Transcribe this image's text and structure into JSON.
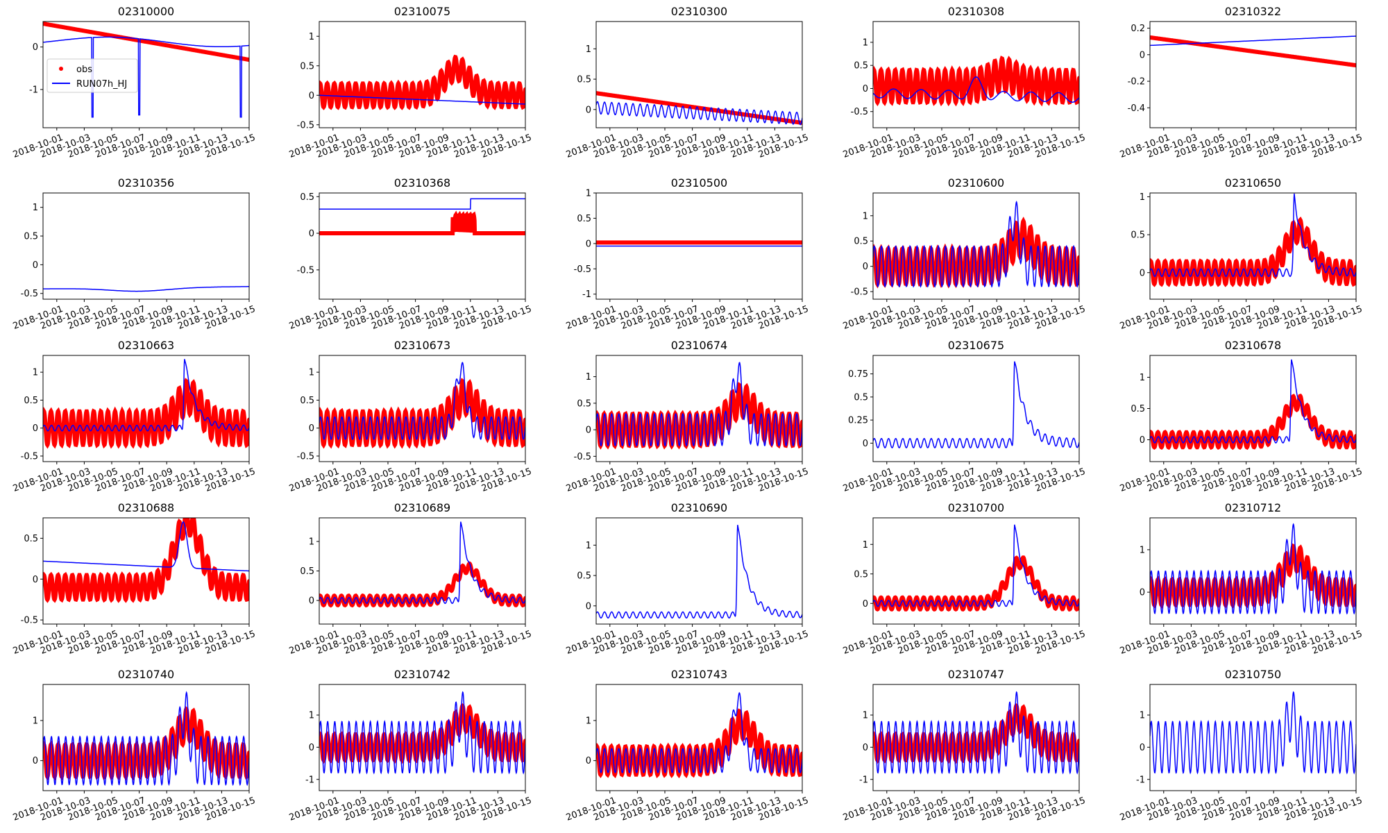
{
  "colors": {
    "obs": "#ff0000",
    "model": "#0000ff",
    "frame": "#000000",
    "background": "#ffffff"
  },
  "legend": {
    "placement": "upper-left of first subplot",
    "entries": [
      {
        "label": "obs",
        "style": "red-dot"
      },
      {
        "label": "RUN07h_HJ",
        "style": "blue-line"
      }
    ]
  },
  "chart_data": [
    {
      "title": "02310000",
      "type": "line",
      "ylim": [
        -1.9,
        0.6
      ],
      "yticks": [
        0,
        -1
      ],
      "obs": {
        "shape": "trend",
        "start": 0.55,
        "end": -0.3
      },
      "model": {
        "shape": "dips",
        "base_start": 0.15,
        "base_end": 0.1,
        "dips": [
          [
            2.6,
            -1.65
          ],
          [
            6.0,
            -1.6
          ],
          [
            13.4,
            -1.65
          ]
        ]
      }
    },
    {
      "title": "02310075",
      "type": "line",
      "ylim": [
        -0.55,
        1.25
      ],
      "yticks": [
        1.0,
        0.5,
        0.0,
        -0.5
      ],
      "obs": {
        "shape": "tidal",
        "mean": 0.0,
        "amp": 0.2,
        "peak": 0.45,
        "peak_day": 9.0
      },
      "model": {
        "shape": "smooth",
        "start": 0.0,
        "end": -0.15
      }
    },
    {
      "title": "02310300",
      "type": "line",
      "ylim": [
        -0.3,
        1.45
      ],
      "yticks": [
        1.0,
        0.5,
        0.0
      ],
      "obs": {
        "shape": "trend",
        "start": 0.27,
        "end": -0.22
      },
      "model": {
        "shape": "spiky",
        "start": 0.03,
        "end": -0.15,
        "amp": 0.1
      }
    },
    {
      "title": "02310308",
      "type": "line",
      "ylim": [
        -0.85,
        1.45
      ],
      "yticks": [
        1.0,
        0.5,
        0.0,
        -0.5
      ],
      "obs": {
        "shape": "tidal",
        "mean": 0.05,
        "amp": 0.35,
        "peak": 0.3,
        "peak_day": 8.5
      },
      "model": {
        "shape": "smooth-wave",
        "start": -0.1,
        "end": -0.2,
        "amp": 0.1
      }
    },
    {
      "title": "02310322",
      "type": "line",
      "ylim": [
        -0.55,
        0.25
      ],
      "yticks": [
        0.2,
        0.0,
        -0.2,
        -0.4
      ],
      "obs": {
        "shape": "trend",
        "start": 0.13,
        "end": -0.08
      },
      "model": {
        "shape": "smooth",
        "start": 0.07,
        "end": 0.14
      }
    },
    {
      "title": "02310356",
      "type": "line",
      "ylim": [
        -0.6,
        1.25
      ],
      "yticks": [
        1.0,
        0.5,
        0.0,
        -0.5
      ],
      "obs": null,
      "model": {
        "shape": "smooth",
        "start": -0.42,
        "end": -0.38,
        "dip": -0.48
      }
    },
    {
      "title": "02310368",
      "type": "line",
      "ylim": [
        -0.9,
        0.55
      ],
      "yticks": [
        0.5,
        0.0,
        -0.5
      ],
      "obs": {
        "shape": "flat",
        "mean": 0.0,
        "bump": 0.25,
        "bump_day": 9.5
      },
      "model": {
        "shape": "step",
        "start": 0.33,
        "end": 0.47,
        "step_day": 10.0
      }
    },
    {
      "title": "02310500",
      "type": "line",
      "ylim": [
        -1.1,
        1.0
      ],
      "yticks": [
        1.0,
        0.5,
        0.0,
        -0.5,
        -1.0
      ],
      "obs": {
        "shape": "flat",
        "mean": 0.02
      },
      "model": {
        "shape": "smooth",
        "start": -0.05,
        "end": -0.05
      }
    },
    {
      "title": "02310600",
      "type": "line",
      "ylim": [
        -0.65,
        1.45
      ],
      "yticks": [
        1.0,
        0.5,
        0.0,
        -0.5
      ],
      "obs": {
        "shape": "tidal",
        "mean": 0.0,
        "amp": 0.35,
        "peak": 0.55,
        "peak_day": 9.8
      },
      "model": {
        "shape": "tidal-peak",
        "mean": 0.0,
        "amp": 0.4,
        "peak": 1.35,
        "peak_day": 9.3
      }
    },
    {
      "title": "02310650",
      "type": "line",
      "ylim": [
        -0.35,
        1.05
      ],
      "yticks": [
        1.0,
        0.5,
        0.0
      ],
      "obs": {
        "shape": "tidal",
        "mean": 0.0,
        "amp": 0.15,
        "peak": 0.55,
        "peak_day": 9.8
      },
      "model": {
        "shape": "peak",
        "base": 0.0,
        "peak": 1.0,
        "peak_day": 9.5
      }
    },
    {
      "title": "02310663",
      "type": "line",
      "ylim": [
        -0.6,
        1.3
      ],
      "yticks": [
        1.0,
        0.5,
        0.0,
        -0.5
      ],
      "obs": {
        "shape": "tidal",
        "mean": 0.0,
        "amp": 0.3,
        "peak": 0.55,
        "peak_day": 9.6
      },
      "model": {
        "shape": "peak",
        "base": 0.0,
        "peak": 1.25,
        "peak_day": 9.3
      }
    },
    {
      "title": "02310673",
      "type": "line",
      "ylim": [
        -0.6,
        1.3
      ],
      "yticks": [
        1.0,
        0.5,
        0.0,
        -0.5
      ],
      "obs": {
        "shape": "tidal",
        "mean": 0.0,
        "amp": 0.3,
        "peak": 0.55,
        "peak_day": 9.6
      },
      "model": {
        "shape": "tidal-peak",
        "mean": 0.0,
        "amp": 0.2,
        "peak": 1.25,
        "peak_day": 9.3
      }
    },
    {
      "title": "02310674",
      "type": "line",
      "ylim": [
        -0.6,
        1.4
      ],
      "yticks": [
        1.0,
        0.5,
        0.0,
        -0.5
      ],
      "obs": {
        "shape": "tidal",
        "mean": 0.0,
        "amp": 0.3,
        "peak": 0.55,
        "peak_day": 9.6
      },
      "model": {
        "shape": "tidal-peak",
        "mean": 0.0,
        "amp": 0.3,
        "peak": 1.35,
        "peak_day": 9.3
      }
    },
    {
      "title": "02310675",
      "type": "line",
      "ylim": [
        -0.2,
        0.95
      ],
      "yticks": [
        0.75,
        0.5,
        0.25,
        0.0
      ],
      "obs": null,
      "model": {
        "shape": "peak",
        "base": 0.0,
        "peak": 0.9,
        "peak_day": 9.3
      }
    },
    {
      "title": "02310678",
      "type": "line",
      "ylim": [
        -0.35,
        1.35
      ],
      "yticks": [
        1.0,
        0.5,
        0.0
      ],
      "obs": {
        "shape": "tidal",
        "mean": 0.0,
        "amp": 0.12,
        "peak": 0.6,
        "peak_day": 9.7
      },
      "model": {
        "shape": "peak",
        "base": 0.0,
        "peak": 1.3,
        "peak_day": 9.3
      }
    },
    {
      "title": "02310688",
      "type": "line",
      "ylim": [
        -0.55,
        0.75
      ],
      "yticks": [
        0.5,
        0.0,
        -0.5
      ],
      "obs": {
        "shape": "tidal",
        "mean": -0.1,
        "amp": 0.15,
        "peak": 0.7,
        "peak_day": 9.5
      },
      "model": {
        "shape": "smooth",
        "start": 0.22,
        "end": 0.1,
        "peak": 0.7,
        "peak_day": 9.2
      }
    },
    {
      "title": "02310689",
      "type": "line",
      "ylim": [
        -0.4,
        1.4
      ],
      "yticks": [
        1.0,
        0.5,
        0.0
      ],
      "obs": {
        "shape": "tidal",
        "mean": 0.0,
        "amp": 0.08,
        "peak": 0.55,
        "peak_day": 9.8
      },
      "model": {
        "shape": "peak",
        "base": 0.0,
        "peak": 1.35,
        "peak_day": 9.3
      }
    },
    {
      "title": "02310690",
      "type": "line",
      "ylim": [
        -0.3,
        1.45
      ],
      "yticks": [
        1.0,
        0.5,
        0.0
      ],
      "obs": null,
      "model": {
        "shape": "peak",
        "base": -0.15,
        "peak": 1.35,
        "peak_day": 9.3
      }
    },
    {
      "title": "02310700",
      "type": "line",
      "ylim": [
        -0.35,
        1.45
      ],
      "yticks": [
        1.0,
        0.5,
        0.0
      ],
      "obs": {
        "shape": "tidal",
        "mean": 0.0,
        "amp": 0.1,
        "peak": 0.7,
        "peak_day": 9.7
      },
      "model": {
        "shape": "peak",
        "base": 0.0,
        "peak": 1.35,
        "peak_day": 9.3
      }
    },
    {
      "title": "02310712",
      "type": "line",
      "ylim": [
        -0.75,
        1.75
      ],
      "yticks": [
        1,
        0
      ],
      "obs": {
        "shape": "tidal",
        "mean": 0.0,
        "amp": 0.3,
        "peak": 0.8,
        "peak_day": 9.6
      },
      "model": {
        "shape": "tidal-peak",
        "mean": 0.0,
        "amp": 0.5,
        "peak": 1.7,
        "peak_day": 9.3
      }
    },
    {
      "title": "02310740",
      "type": "line",
      "ylim": [
        -0.75,
        1.9
      ],
      "yticks": [
        1,
        0
      ],
      "obs": {
        "shape": "tidal",
        "mean": 0.0,
        "amp": 0.4,
        "peak": 0.9,
        "peak_day": 9.6
      },
      "model": {
        "shape": "tidal-peak",
        "mean": 0.0,
        "amp": 0.6,
        "peak": 1.8,
        "peak_day": 9.3
      }
    },
    {
      "title": "02310742",
      "type": "line",
      "ylim": [
        -1.35,
        1.95
      ],
      "yticks": [
        1,
        0,
        -1
      ],
      "obs": {
        "shape": "tidal",
        "mean": 0.0,
        "amp": 0.4,
        "peak": 0.9,
        "peak_day": 9.6
      },
      "model": {
        "shape": "tidal-peak",
        "mean": 0.0,
        "amp": 0.8,
        "peak": 1.8,
        "peak_day": 9.3
      }
    },
    {
      "title": "02310743",
      "type": "line",
      "ylim": [
        -0.75,
        1.9
      ],
      "yticks": [
        1,
        0
      ],
      "obs": {
        "shape": "tidal",
        "mean": 0.0,
        "amp": 0.35,
        "peak": 0.9,
        "peak_day": 9.6
      },
      "model": {
        "shape": "tidal-peak",
        "mean": 0.0,
        "amp": 0.3,
        "peak": 1.8,
        "peak_day": 9.3
      }
    },
    {
      "title": "02310747",
      "type": "line",
      "ylim": [
        -1.35,
        1.95
      ],
      "yticks": [
        1,
        0,
        -1
      ],
      "obs": {
        "shape": "tidal",
        "mean": 0.0,
        "amp": 0.4,
        "peak": 0.9,
        "peak_day": 9.6
      },
      "model": {
        "shape": "tidal-peak",
        "mean": 0.0,
        "amp": 0.8,
        "peak": 1.8,
        "peak_day": 9.3
      }
    },
    {
      "title": "02310750",
      "type": "line",
      "ylim": [
        -1.35,
        1.95
      ],
      "yticks": [
        1,
        0,
        -1
      ],
      "obs": null,
      "model": {
        "shape": "tidal-peak",
        "mean": 0.0,
        "amp": 0.8,
        "peak": 1.8,
        "peak_day": 9.3
      }
    }
  ],
  "x_axis": {
    "ticks": [
      "2018-10-01",
      "2018-10-03",
      "2018-10-05",
      "2018-10-07",
      "2018-10-09",
      "2018-10-11",
      "2018-10-13",
      "2018-10-15"
    ],
    "range": [
      "2018-09-30",
      "2018-10-15"
    ]
  }
}
